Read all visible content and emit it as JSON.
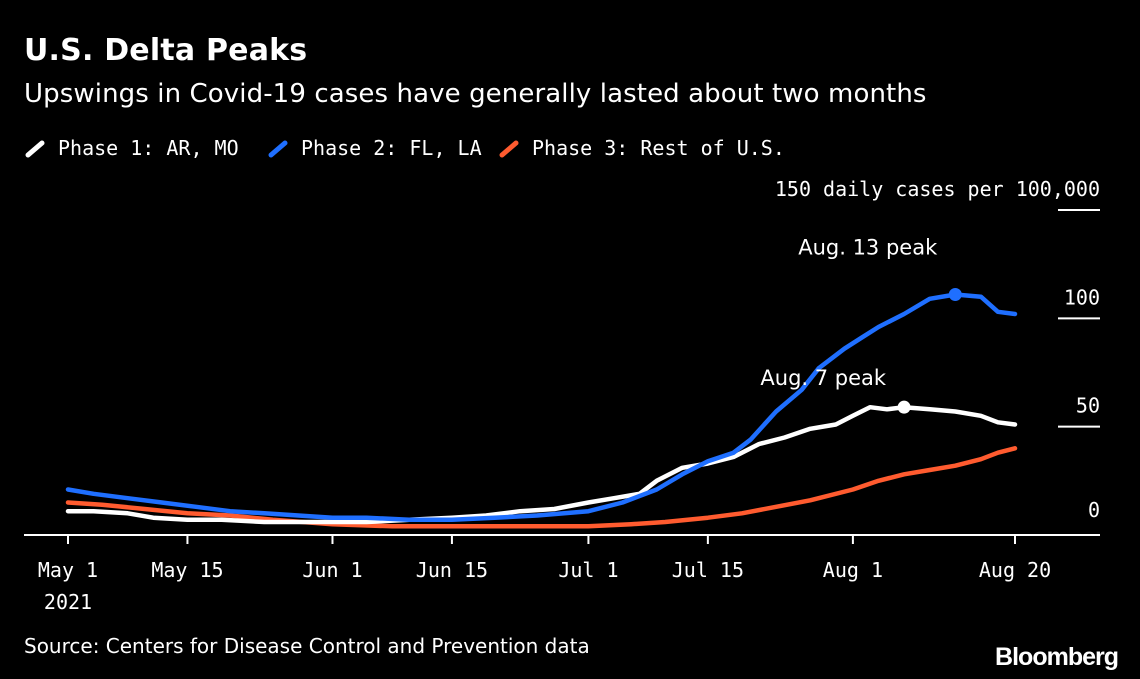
{
  "header": {
    "title": "U.S. Delta Peaks",
    "subtitle": "Upswings in Covid-19 cases have generally lasted about two months"
  },
  "footer": {
    "source": "Source: Centers for Disease Control and Prevention data",
    "logo": "Bloomberg"
  },
  "chart_data": {
    "type": "line",
    "title": "U.S. Delta Peaks",
    "subtitle": "Upswings in Covid-19 cases have generally lasted about two months",
    "ylabel": "150 daily cases per 100,000",
    "ylim": [
      0,
      150
    ],
    "yticks": [
      {
        "value": 0,
        "label": "0"
      },
      {
        "value": 50,
        "label": "50"
      },
      {
        "value": 100,
        "label": "100"
      },
      {
        "value": 150,
        "label": "150 daily cases per 100,000"
      }
    ],
    "xlim": [
      "2021-05-01",
      "2021-08-20"
    ],
    "xticks": [
      {
        "date": "2021-05-01",
        "label": "May 1",
        "sublabel": "2021"
      },
      {
        "date": "2021-05-15",
        "label": "May 15"
      },
      {
        "date": "2021-06-01",
        "label": "Jun 1"
      },
      {
        "date": "2021-06-15",
        "label": "Jun 15"
      },
      {
        "date": "2021-07-01",
        "label": "Jul 1"
      },
      {
        "date": "2021-07-15",
        "label": "Jul 15"
      },
      {
        "date": "2021-08-01",
        "label": "Aug 1"
      },
      {
        "date": "2021-08-20",
        "label": "Aug 20"
      }
    ],
    "grid": false,
    "legend": "top-left",
    "series": [
      {
        "name": "Phase 1: AR, MO",
        "color": "#ffffff",
        "points": [
          [
            "2021-05-01",
            11
          ],
          [
            "2021-05-04",
            11
          ],
          [
            "2021-05-08",
            10
          ],
          [
            "2021-05-11",
            8
          ],
          [
            "2021-05-15",
            7
          ],
          [
            "2021-05-19",
            7
          ],
          [
            "2021-05-24",
            6
          ],
          [
            "2021-05-28",
            6
          ],
          [
            "2021-06-01",
            6
          ],
          [
            "2021-06-05",
            6
          ],
          [
            "2021-06-10",
            7
          ],
          [
            "2021-06-15",
            8
          ],
          [
            "2021-06-19",
            9
          ],
          [
            "2021-06-23",
            11
          ],
          [
            "2021-06-27",
            12
          ],
          [
            "2021-07-01",
            15
          ],
          [
            "2021-07-04",
            17
          ],
          [
            "2021-07-07",
            19
          ],
          [
            "2021-07-09",
            25
          ],
          [
            "2021-07-12",
            31
          ],
          [
            "2021-07-15",
            33
          ],
          [
            "2021-07-18",
            36
          ],
          [
            "2021-07-21",
            42
          ],
          [
            "2021-07-24",
            45
          ],
          [
            "2021-07-27",
            49
          ],
          [
            "2021-07-30",
            51
          ],
          [
            "2021-08-01",
            55
          ],
          [
            "2021-08-03",
            59
          ],
          [
            "2021-08-05",
            58
          ],
          [
            "2021-08-07",
            59
          ],
          [
            "2021-08-10",
            58
          ],
          [
            "2021-08-13",
            57
          ],
          [
            "2021-08-16",
            55
          ],
          [
            "2021-08-18",
            52
          ],
          [
            "2021-08-20",
            51
          ]
        ]
      },
      {
        "name": "Phase 2: FL, LA",
        "color": "#1f6fff",
        "points": [
          [
            "2021-05-01",
            21
          ],
          [
            "2021-05-04",
            19
          ],
          [
            "2021-05-08",
            17
          ],
          [
            "2021-05-12",
            15
          ],
          [
            "2021-05-16",
            13
          ],
          [
            "2021-05-20",
            11
          ],
          [
            "2021-05-24",
            10
          ],
          [
            "2021-05-28",
            9
          ],
          [
            "2021-06-01",
            8
          ],
          [
            "2021-06-05",
            8
          ],
          [
            "2021-06-10",
            7
          ],
          [
            "2021-06-15",
            7
          ],
          [
            "2021-06-20",
            8
          ],
          [
            "2021-06-25",
            9
          ],
          [
            "2021-07-01",
            11
          ],
          [
            "2021-07-05",
            15
          ],
          [
            "2021-07-09",
            21
          ],
          [
            "2021-07-12",
            28
          ],
          [
            "2021-07-15",
            34
          ],
          [
            "2021-07-18",
            38
          ],
          [
            "2021-07-20",
            44
          ],
          [
            "2021-07-23",
            57
          ],
          [
            "2021-07-26",
            67
          ],
          [
            "2021-07-28",
            77
          ],
          [
            "2021-07-31",
            86
          ],
          [
            "2021-08-02",
            91
          ],
          [
            "2021-08-04",
            96
          ],
          [
            "2021-08-07",
            102
          ],
          [
            "2021-08-10",
            109
          ],
          [
            "2021-08-13",
            111
          ],
          [
            "2021-08-16",
            110
          ],
          [
            "2021-08-18",
            103
          ],
          [
            "2021-08-20",
            102
          ]
        ]
      },
      {
        "name": "Phase 3: Rest of U.S.",
        "color": "#ff5b2f",
        "points": [
          [
            "2021-05-01",
            15
          ],
          [
            "2021-05-05",
            14
          ],
          [
            "2021-05-10",
            12
          ],
          [
            "2021-05-15",
            10
          ],
          [
            "2021-05-20",
            9
          ],
          [
            "2021-05-25",
            7
          ],
          [
            "2021-06-01",
            5
          ],
          [
            "2021-06-08",
            4
          ],
          [
            "2021-06-15",
            4
          ],
          [
            "2021-06-22",
            4
          ],
          [
            "2021-07-01",
            4
          ],
          [
            "2021-07-06",
            5
          ],
          [
            "2021-07-10",
            6
          ],
          [
            "2021-07-15",
            8
          ],
          [
            "2021-07-19",
            10
          ],
          [
            "2021-07-23",
            13
          ],
          [
            "2021-07-27",
            16
          ],
          [
            "2021-08-01",
            21
          ],
          [
            "2021-08-04",
            25
          ],
          [
            "2021-08-07",
            28
          ],
          [
            "2021-08-10",
            30
          ],
          [
            "2021-08-13",
            32
          ],
          [
            "2021-08-16",
            35
          ],
          [
            "2021-08-18",
            38
          ],
          [
            "2021-08-20",
            40
          ]
        ]
      }
    ],
    "annotations": [
      {
        "text": "Aug. 13 peak",
        "date": "2021-08-13",
        "value": 111,
        "series": "Phase 2: FL, LA",
        "color": "#1f6fff"
      },
      {
        "text": "Aug. 7 peak",
        "date": "2021-08-07",
        "value": 59,
        "series": "Phase 1: AR, MO",
        "color": "#ffffff"
      }
    ]
  }
}
